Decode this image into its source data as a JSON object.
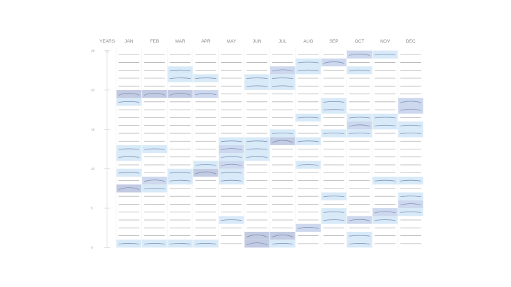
{
  "chart_data": {
    "type": "heatmap",
    "y_header": "YEARS",
    "months": [
      "JAN",
      "FEB",
      "MAR",
      "APR",
      "MAY",
      "JUN",
      "JUL",
      "AUG",
      "SEP",
      "OCT",
      "NOV",
      "DEC"
    ],
    "ylim": [
      0,
      25
    ],
    "y_ticks": [
      "0",
      "5",
      "10",
      "15",
      "20",
      "25"
    ],
    "levels": {
      "1": "#d8eaf8",
      "2": "#cdd8ee",
      "3": "#c3cbe3"
    },
    "line_color": "#b3b3b3",
    "curve_color": "#7f93b5",
    "cells": [
      [
        [
          19,
          3
        ],
        [
          18,
          1
        ],
        [
          12,
          1
        ],
        [
          11,
          1
        ],
        [
          9,
          1
        ],
        [
          7,
          3
        ],
        [
          0,
          1
        ]
      ],
      [
        [
          19,
          3
        ],
        [
          12,
          1
        ],
        [
          8,
          2
        ],
        [
          7,
          1
        ],
        [
          0,
          1
        ]
      ],
      [
        [
          22,
          1
        ],
        [
          21,
          1
        ],
        [
          19,
          3
        ],
        [
          9,
          1
        ],
        [
          8,
          1
        ],
        [
          0,
          1
        ]
      ],
      [
        [
          21,
          1
        ],
        [
          19,
          2
        ],
        [
          10,
          1
        ],
        [
          9,
          3
        ],
        [
          0,
          1
        ]
      ],
      [
        [
          13,
          1
        ],
        [
          12,
          2
        ],
        [
          11,
          1
        ],
        [
          10,
          2
        ],
        [
          9,
          1
        ],
        [
          8,
          1
        ],
        [
          3,
          1
        ]
      ],
      [
        [
          21,
          1
        ],
        [
          20,
          1
        ],
        [
          13,
          1
        ],
        [
          12,
          1
        ],
        [
          11,
          1
        ],
        [
          1,
          3
        ],
        [
          0,
          3
        ]
      ],
      [
        [
          22,
          2
        ],
        [
          21,
          1
        ],
        [
          20,
          1
        ],
        [
          14,
          1
        ],
        [
          13,
          3
        ],
        [
          1,
          3
        ],
        [
          0,
          1
        ]
      ],
      [
        [
          23,
          1
        ],
        [
          22,
          1
        ],
        [
          16,
          1
        ],
        [
          13,
          1
        ],
        [
          10,
          1
        ],
        [
          2,
          2
        ]
      ],
      [
        [
          23,
          2
        ],
        [
          18,
          1
        ],
        [
          17,
          1
        ],
        [
          14,
          1
        ],
        [
          6,
          1
        ],
        [
          4,
          1
        ],
        [
          3,
          1
        ]
      ],
      [
        [
          24,
          2
        ],
        [
          22,
          1
        ],
        [
          16,
          1
        ],
        [
          15,
          2
        ],
        [
          14,
          1
        ],
        [
          3,
          2
        ],
        [
          1,
          1
        ],
        [
          0,
          1
        ]
      ],
      [
        [
          24,
          1
        ],
        [
          16,
          1
        ],
        [
          15,
          1
        ],
        [
          8,
          1
        ],
        [
          4,
          2
        ],
        [
          3,
          1
        ]
      ],
      [
        [
          18,
          2
        ],
        [
          17,
          2
        ],
        [
          15,
          1
        ],
        [
          14,
          1
        ],
        [
          8,
          1
        ],
        [
          6,
          1
        ],
        [
          5,
          2
        ],
        [
          4,
          1
        ]
      ]
    ]
  }
}
